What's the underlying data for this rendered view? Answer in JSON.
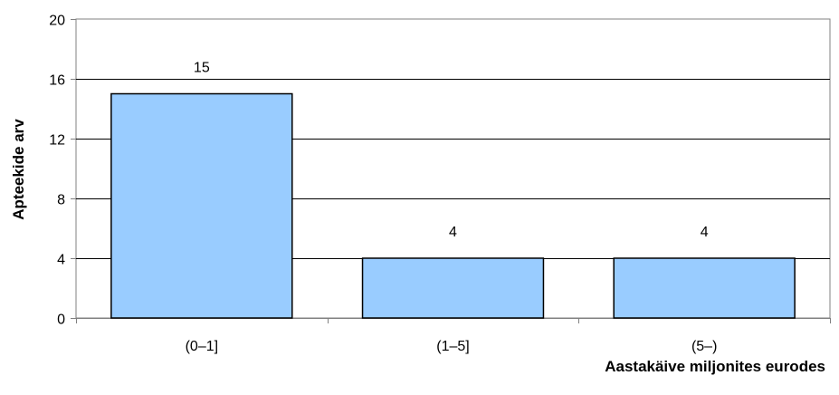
{
  "chart_data": {
    "type": "bar",
    "categories": [
      "(0–1]",
      "(1–5]",
      "(5–)"
    ],
    "values": [
      15,
      4,
      4
    ],
    "data_labels": [
      "15",
      "4",
      "4"
    ],
    "title": "",
    "xlabel": "Aastakäive miljonites eurodes",
    "ylabel": "Apteekide arv",
    "ylim": [
      0,
      20
    ],
    "yticks": [
      0,
      4,
      8,
      12,
      16,
      20
    ],
    "ytick_labels": [
      "0",
      "4",
      "8",
      "12",
      "16",
      "20"
    ],
    "grid": true,
    "legend": "none",
    "colors": {
      "bar_fill": "#99ccff",
      "bar_stroke": "#000000",
      "grid": "#000000",
      "axis": "#808080",
      "text": "#000000"
    }
  }
}
